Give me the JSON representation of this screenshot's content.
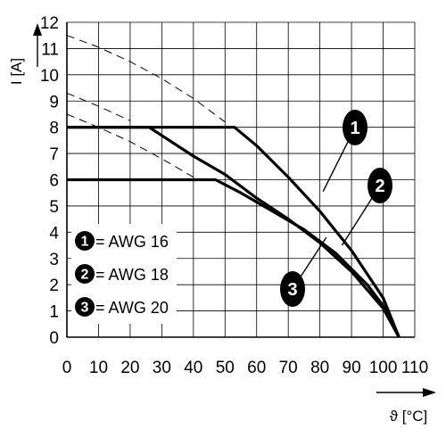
{
  "chart_data": {
    "type": "line",
    "title": "",
    "xlabel": "ϑ [°C]",
    "ylabel": "I [A]",
    "xlim": [
      0,
      110
    ],
    "ylim": [
      0,
      12
    ],
    "xticks": [
      0,
      10,
      20,
      30,
      40,
      50,
      60,
      70,
      80,
      90,
      100,
      110
    ],
    "yticks": [
      0,
      1,
      2,
      3,
      4,
      5,
      6,
      7,
      8,
      9,
      10,
      11,
      12
    ],
    "grid": true,
    "legend_position": "bottom-left",
    "series": [
      {
        "name": "AWG 16",
        "marker": "1",
        "style": "solid",
        "points": [
          [
            0,
            8
          ],
          [
            53,
            8
          ],
          [
            60,
            7.3
          ],
          [
            70,
            6.1
          ],
          [
            80,
            4.8
          ],
          [
            90,
            3.3
          ],
          [
            100,
            1.5
          ],
          [
            105,
            0
          ]
        ]
      },
      {
        "name": "AWG 18",
        "marker": "2",
        "style": "solid",
        "points": [
          [
            0,
            8
          ],
          [
            26,
            8
          ],
          [
            40,
            6.9
          ],
          [
            50,
            6.2
          ],
          [
            60,
            5.3
          ],
          [
            70,
            4.5
          ],
          [
            80,
            3.6
          ],
          [
            90,
            2.5
          ],
          [
            100,
            1.1
          ],
          [
            105,
            0
          ]
        ]
      },
      {
        "name": "AWG 20",
        "marker": "3",
        "style": "solid",
        "points": [
          [
            0,
            6
          ],
          [
            47,
            6
          ],
          [
            55,
            5.5
          ],
          [
            65,
            4.8
          ],
          [
            75,
            4.1
          ],
          [
            85,
            3.2
          ],
          [
            95,
            2.0
          ],
          [
            100,
            1.2
          ],
          [
            105,
            0
          ]
        ]
      },
      {
        "name": "",
        "style": "dashed",
        "points": [
          [
            0,
            11.5
          ],
          [
            10,
            11.05
          ],
          [
            20,
            10.5
          ],
          [
            30,
            9.85
          ],
          [
            40,
            9.1
          ],
          [
            50,
            8.2
          ]
        ]
      },
      {
        "name": "",
        "style": "dashed",
        "points": [
          [
            0,
            9.3
          ],
          [
            10,
            8.8
          ],
          [
            20,
            8.25
          ]
        ]
      },
      {
        "name": "",
        "style": "dashed",
        "points": [
          [
            0,
            8.5
          ],
          [
            10,
            8.0
          ],
          [
            20,
            7.45
          ],
          [
            30,
            6.8
          ],
          [
            40,
            6.1
          ]
        ]
      }
    ],
    "legend": [
      {
        "marker": "1",
        "label": "= AWG 16"
      },
      {
        "marker": "2",
        "label": "= AWG 18"
      },
      {
        "marker": "3",
        "label": "= AWG 20"
      }
    ],
    "callouts": [
      {
        "marker": "1",
        "anchor": [
          81,
          5.55
        ]
      },
      {
        "marker": "2",
        "anchor": [
          87,
          3.5
        ]
      },
      {
        "marker": "3",
        "anchor": [
          82,
          3.8
        ]
      }
    ]
  }
}
